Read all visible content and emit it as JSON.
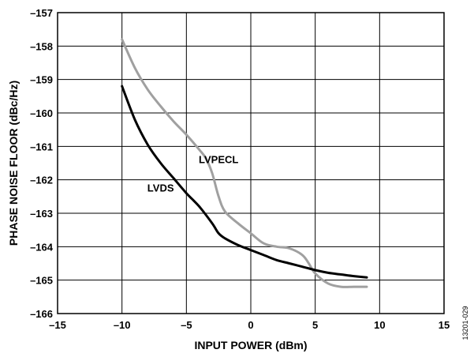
{
  "chart_data": {
    "type": "line",
    "xlabel": "INPUT POWER (dBm)",
    "ylabel": "PHASE NOISE FLOOR (dBc/Hz)",
    "xlim": [
      -15,
      15
    ],
    "ylim": [
      -166,
      -157
    ],
    "x_ticks": [
      -15,
      -10,
      -5,
      0,
      5,
      10,
      15
    ],
    "y_ticks": [
      -157,
      -158,
      -159,
      -160,
      -161,
      -162,
      -163,
      -164,
      -165,
      -166
    ],
    "x_tick_labels": [
      "–15",
      "–10",
      "–5",
      "0",
      "5",
      "10",
      "15"
    ],
    "y_tick_labels": [
      "–157",
      "–158",
      "–159",
      "–160",
      "–161",
      "–162",
      "–163",
      "–164",
      "–165",
      "–166"
    ],
    "grid": true,
    "figure_id": "13201-029",
    "series": [
      {
        "name": "LVPECL",
        "color": "#a0a0a0",
        "x": [
          -10,
          -9,
          -8,
          -7,
          -6,
          -5,
          -4,
          -3.5,
          -3,
          -2.5,
          -2,
          -1,
          0,
          1,
          2,
          3,
          4,
          4.5,
          5,
          6,
          7,
          8,
          9
        ],
        "y": [
          -157.8,
          -158.65,
          -159.3,
          -159.8,
          -160.25,
          -160.65,
          -161.1,
          -161.35,
          -161.8,
          -162.5,
          -162.95,
          -163.3,
          -163.6,
          -163.9,
          -164.0,
          -164.05,
          -164.25,
          -164.5,
          -164.8,
          -165.1,
          -165.2,
          -165.2,
          -165.2
        ]
      },
      {
        "name": "LVDS",
        "color": "#000000",
        "x": [
          -10,
          -9,
          -8,
          -7,
          -6,
          -5,
          -4,
          -3,
          -2.5,
          -2,
          -1,
          0,
          1,
          2,
          3,
          4,
          5,
          6,
          7,
          8,
          9
        ],
        "y": [
          -159.2,
          -160.2,
          -160.95,
          -161.5,
          -161.95,
          -162.4,
          -162.8,
          -163.3,
          -163.6,
          -163.75,
          -163.95,
          -164.1,
          -164.25,
          -164.4,
          -164.5,
          -164.6,
          -164.7,
          -164.78,
          -164.83,
          -164.88,
          -164.92
        ]
      }
    ],
    "annotations": [
      {
        "text": "LVPECL",
        "x": -2.5,
        "y": -161.5
      },
      {
        "text": "LVDS",
        "x": -7,
        "y": -162.35
      }
    ]
  }
}
